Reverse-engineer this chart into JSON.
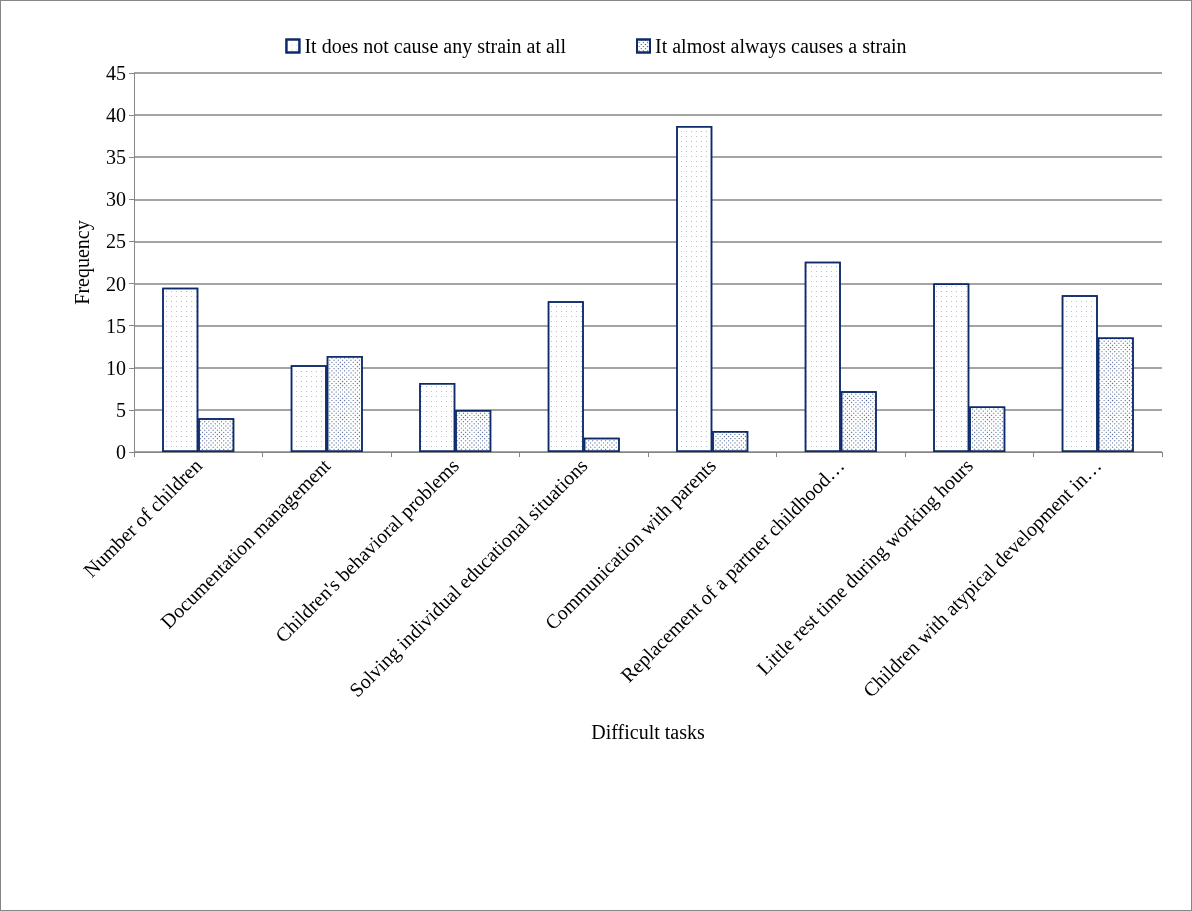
{
  "chart_data": {
    "type": "bar",
    "xlabel": "Difficult tasks",
    "ylabel": "Frequency",
    "categories": [
      "Number of children",
      "Documentation management",
      "Children's behavioral problems",
      "Solving individual educational situations",
      "Communication with parents",
      "Replacement of a partner childhood…",
      "Little rest time during working hours",
      "Children with atypical development in…"
    ],
    "series": [
      {
        "name": "It does not cause any strain at all",
        "color": "#0d2b6b",
        "values": [
          19.5,
          10.3,
          8.2,
          17.9,
          38.7,
          22.6,
          20,
          18.6
        ]
      },
      {
        "name": "It almost always causes a strain",
        "color": "#0d2b6b",
        "values": [
          4,
          11.4,
          5,
          1.7,
          2.5,
          7.2,
          5.4,
          13.6
        ]
      }
    ],
    "ylim": [
      0,
      45
    ],
    "yticks": [
      0,
      5,
      10,
      15,
      20,
      25,
      30,
      35,
      40,
      45
    ],
    "grid": "y",
    "legend": "top"
  }
}
